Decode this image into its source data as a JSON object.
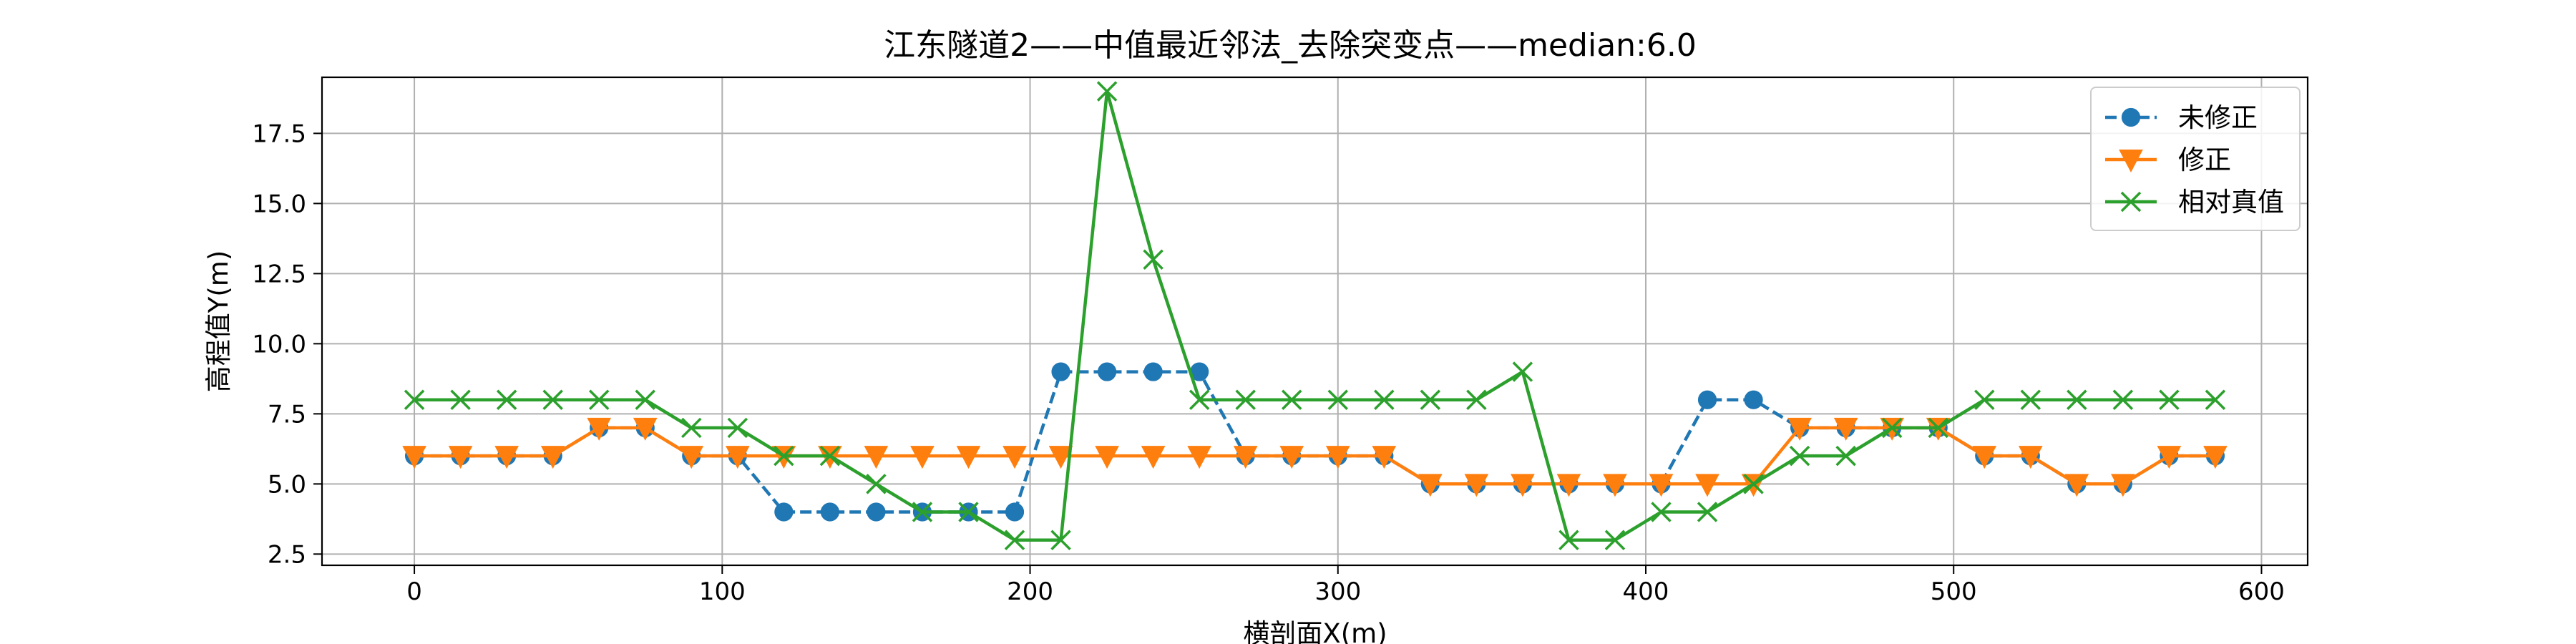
{
  "chart_data": {
    "type": "line",
    "title": "江东隧道2——中值最近邻法_去除突变点——median:6.0",
    "xlabel": "横剖面X(m)",
    "ylabel": "高程值Y(m)",
    "xlim": [
      -30,
      615
    ],
    "ylim": [
      2.1,
      19.5
    ],
    "xticks": [
      0,
      100,
      200,
      300,
      400,
      500,
      600
    ],
    "yticks": [
      2.5,
      5.0,
      7.5,
      10.0,
      12.5,
      15.0,
      17.5
    ],
    "grid": true,
    "legend_position": "top-right",
    "x": [
      0,
      15,
      30,
      45,
      60,
      75,
      90,
      105,
      120,
      135,
      150,
      165,
      180,
      195,
      210,
      225,
      240,
      255,
      270,
      285,
      300,
      315,
      330,
      345,
      360,
      375,
      390,
      405,
      420,
      435,
      450,
      465,
      480,
      495,
      510,
      525,
      540,
      555,
      570,
      585
    ],
    "series": [
      {
        "name": "未修正",
        "color": "#1f77b4",
        "line_style": "dashed",
        "marker": "circle",
        "values": [
          6,
          6,
          6,
          6,
          7,
          7,
          6,
          6,
          4,
          4,
          4,
          4,
          4,
          4,
          9,
          9,
          9,
          9,
          6,
          6,
          6,
          6,
          5,
          5,
          5,
          5,
          5,
          5,
          8,
          8,
          7,
          7,
          7,
          7,
          6,
          6,
          5,
          5,
          6,
          6
        ]
      },
      {
        "name": "修正",
        "color": "#ff7f0e",
        "line_style": "solid",
        "marker": "triangle-down",
        "values": [
          6,
          6,
          6,
          6,
          7,
          7,
          6,
          6,
          6,
          6,
          6,
          6,
          6,
          6,
          6,
          6,
          6,
          6,
          6,
          6,
          6,
          6,
          5,
          5,
          5,
          5,
          5,
          5,
          5,
          5,
          7,
          7,
          7,
          7,
          6,
          6,
          5,
          5,
          6,
          6
        ]
      },
      {
        "name": "相对真值",
        "color": "#2ca02c",
        "line_style": "solid",
        "marker": "x",
        "values": [
          8,
          8,
          8,
          8,
          8,
          8,
          7,
          7,
          6,
          6,
          5,
          4,
          4,
          3,
          3,
          19,
          13,
          8,
          8,
          8,
          8,
          8,
          8,
          8,
          9,
          3,
          3,
          4,
          4,
          5,
          6,
          6,
          7,
          7,
          8,
          8,
          8,
          8,
          8,
          8
        ]
      }
    ]
  }
}
